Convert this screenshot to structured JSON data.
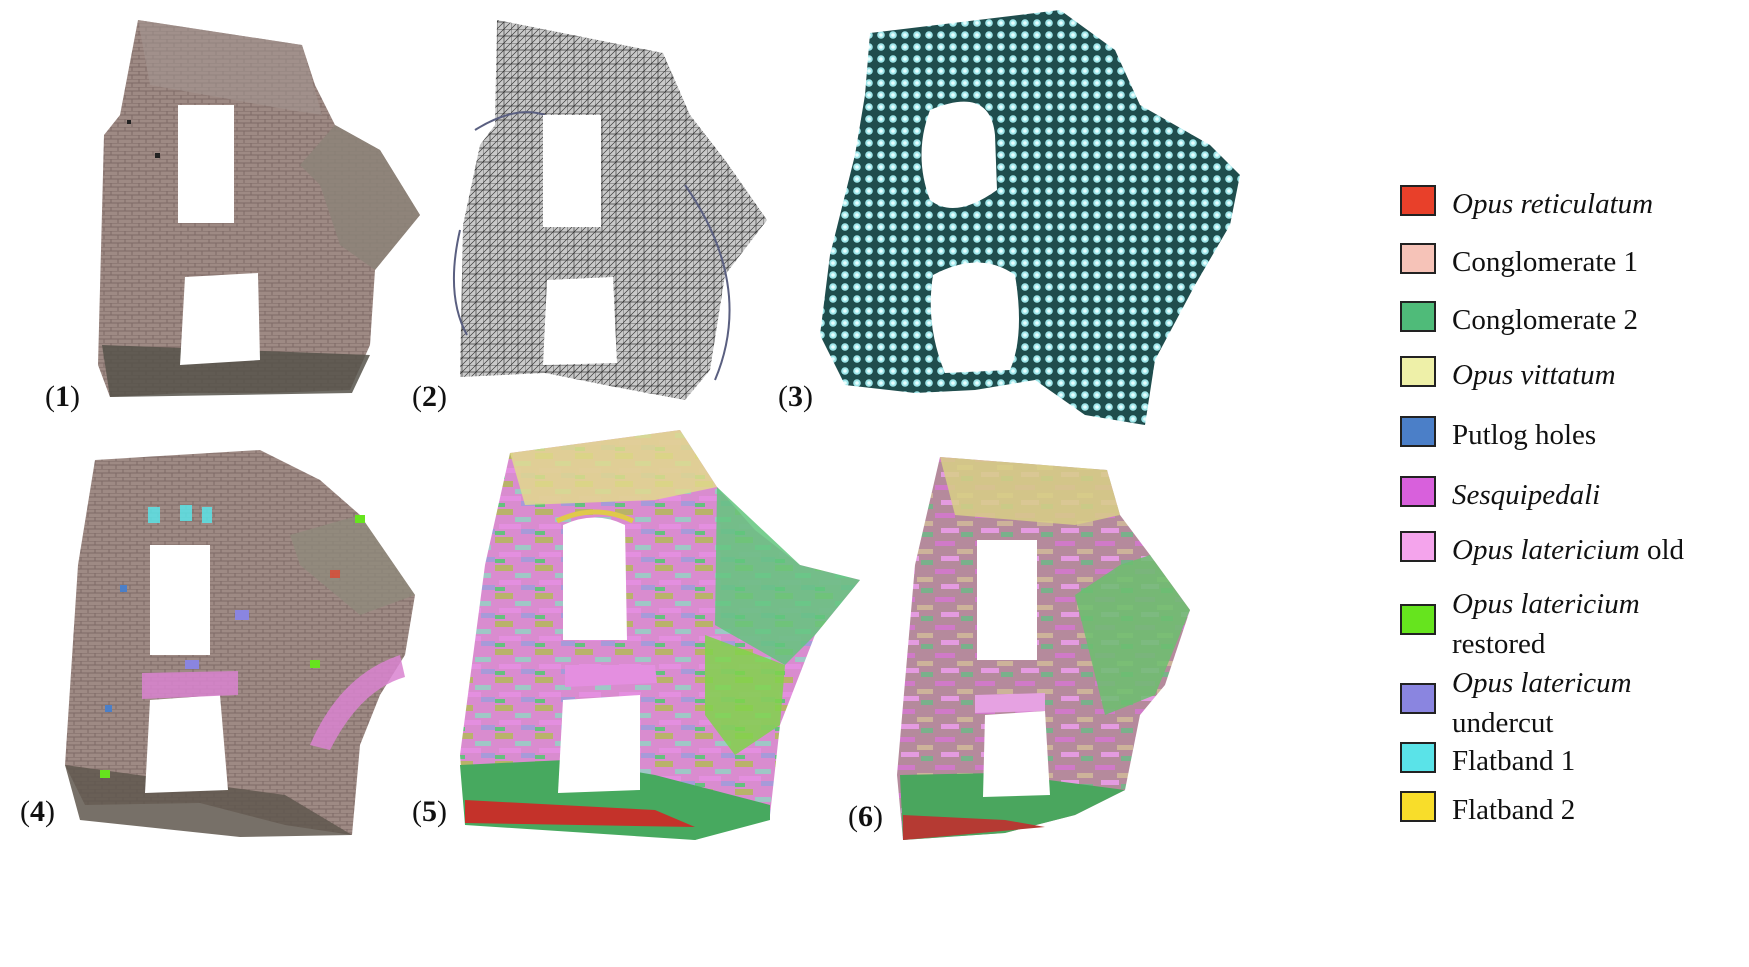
{
  "panels": [
    {
      "label": "1"
    },
    {
      "label": "2"
    },
    {
      "label": "3"
    },
    {
      "label": "4"
    },
    {
      "label": "5"
    },
    {
      "label": "6"
    }
  ],
  "legend": [
    {
      "italic": "Opus reticulatum",
      "rest": "",
      "line2": "",
      "color": "#e8402a"
    },
    {
      "italic": "",
      "rest": "Conglomerate 1",
      "line2": "",
      "color": "#f6c3b8"
    },
    {
      "italic": "",
      "rest": "Conglomerate 2",
      "line2": "",
      "color": "#4fbb79"
    },
    {
      "italic": "Opus vittatum",
      "rest": "",
      "line2": "",
      "color": "#eef0a8"
    },
    {
      "italic": "",
      "rest": "Putlog holes",
      "line2": "",
      "color": "#4b7fc8"
    },
    {
      "italic": "Sesquipedali",
      "rest": "",
      "line2": "",
      "color": "#d860dc"
    },
    {
      "italic": "Opus latericium",
      "rest": " old",
      "line2": "",
      "color": "#f4a4ec"
    },
    {
      "italic": "Opus  latericium",
      "rest": "",
      "line2": "restored",
      "color": "#66e41e"
    },
    {
      "italic": "Opus  latericum",
      "rest": "",
      "line2": "undercut",
      "color": "#8a85e0"
    },
    {
      "italic": "",
      "rest": "Flatband 1",
      "line2": "",
      "color": "#5ae3e8"
    },
    {
      "italic": "",
      "rest": "Flatband 2",
      "line2": "",
      "color": "#f8dd2a"
    }
  ]
}
